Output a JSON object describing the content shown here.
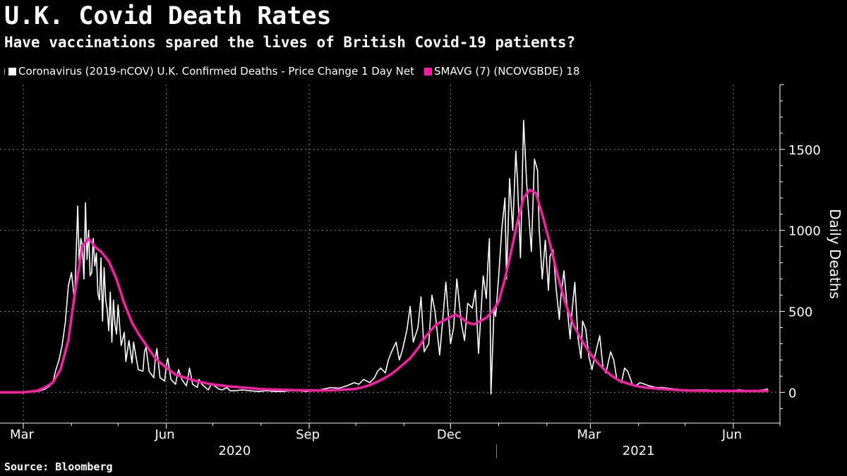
{
  "title": "U.K. Covid Death Rates",
  "subtitle": "Have vaccinations spared the lives of British Covid-19 patients?",
  "legend": {
    "series_daily": "Coronavirus (2019-nCOV) U.K. Confirmed Deaths - Price Change 1 Day Net",
    "series_avg": "SMAVG (7) (NCOVGBDE) 18"
  },
  "source": "Source: Bloomberg",
  "colors": {
    "background": "#000000",
    "daily_line": "#ffffff",
    "avg_line": "#ff1aa8",
    "grid": "#888888"
  },
  "chart_data": {
    "type": "line",
    "title": "U.K. Covid Death Rates",
    "xlabel": "",
    "ylabel": "Daily Deaths",
    "y_axis_side": "right",
    "ylim": [
      -190,
      1900
    ],
    "yticks": [
      0,
      500,
      1000,
      1500
    ],
    "x_date_range": [
      "2020-03-01",
      "2021-07-01"
    ],
    "x_tick_labels": [
      {
        "label": "Mar",
        "date": "2020-03-01"
      },
      {
        "label": "Jun",
        "date": "2020-06-01"
      },
      {
        "label": "Sep",
        "date": "2020-09-01"
      },
      {
        "label": "Dec",
        "date": "2020-12-01"
      },
      {
        "label": "Mar",
        "date": "2021-03-01"
      },
      {
        "label": "Jun",
        "date": "2021-06-01"
      }
    ],
    "x_year_labels": [
      {
        "label": "2020",
        "date": "2020-07-15"
      },
      {
        "label": "2021",
        "date": "2021-04-01"
      }
    ],
    "x_year_divider": "2021-01-01",
    "grid": true,
    "legend_position": "top-left",
    "series": [
      {
        "name": "Coronavirus (2019-nCOV) U.K. Confirmed Deaths - Price Change 1 Day Net",
        "style": "daily",
        "x": [
          "2020-02-15",
          "2020-03-01",
          "2020-03-10",
          "2020-03-15",
          "2020-03-18",
          "2020-03-20",
          "2020-03-22",
          "2020-03-24",
          "2020-03-26",
          "2020-03-28",
          "2020-03-30",
          "2020-04-01",
          "2020-04-03",
          "2020-04-05",
          "2020-04-06",
          "2020-04-07",
          "2020-04-08",
          "2020-04-09",
          "2020-04-10",
          "2020-04-11",
          "2020-04-12",
          "2020-04-13",
          "2020-04-14",
          "2020-04-15",
          "2020-04-16",
          "2020-04-17",
          "2020-04-18",
          "2020-04-19",
          "2020-04-20",
          "2020-04-21",
          "2020-04-22",
          "2020-04-23",
          "2020-04-24",
          "2020-04-25",
          "2020-04-26",
          "2020-04-27",
          "2020-04-28",
          "2020-04-29",
          "2020-04-30",
          "2020-05-01",
          "2020-05-03",
          "2020-05-04",
          "2020-05-05",
          "2020-05-06",
          "2020-05-08",
          "2020-05-10",
          "2020-05-11",
          "2020-05-12",
          "2020-05-14",
          "2020-05-17",
          "2020-05-18",
          "2020-05-19",
          "2020-05-21",
          "2020-05-24",
          "2020-05-25",
          "2020-05-26",
          "2020-05-28",
          "2020-05-31",
          "2020-06-01",
          "2020-06-02",
          "2020-06-04",
          "2020-06-07",
          "2020-06-08",
          "2020-06-09",
          "2020-06-11",
          "2020-06-14",
          "2020-06-15",
          "2020-06-16",
          "2020-06-18",
          "2020-06-21",
          "2020-06-22",
          "2020-06-23",
          "2020-06-25",
          "2020-06-28",
          "2020-06-30",
          "2020-07-02",
          "2020-07-05",
          "2020-07-07",
          "2020-07-10",
          "2020-07-12",
          "2020-07-15",
          "2020-07-20",
          "2020-07-25",
          "2020-07-30",
          "2020-08-05",
          "2020-08-10",
          "2020-08-15",
          "2020-08-20",
          "2020-08-25",
          "2020-08-30",
          "2020-09-05",
          "2020-09-10",
          "2020-09-15",
          "2020-09-20",
          "2020-09-25",
          "2020-09-30",
          "2020-10-03",
          "2020-10-06",
          "2020-10-08",
          "2020-10-10",
          "2020-10-13",
          "2020-10-15",
          "2020-10-17",
          "2020-10-20",
          "2020-10-22",
          "2020-10-24",
          "2020-10-27",
          "2020-10-29",
          "2020-10-31",
          "2020-11-03",
          "2020-11-05",
          "2020-11-07",
          "2020-11-10",
          "2020-11-12",
          "2020-11-14",
          "2020-11-17",
          "2020-11-19",
          "2020-11-21",
          "2020-11-24",
          "2020-11-26",
          "2020-11-28",
          "2020-12-01",
          "2020-12-03",
          "2020-12-05",
          "2020-12-08",
          "2020-12-10",
          "2020-12-12",
          "2020-12-15",
          "2020-12-17",
          "2020-12-19",
          "2020-12-22",
          "2020-12-24",
          "2020-12-25",
          "2020-12-26",
          "2020-12-27",
          "2020-12-29",
          "2020-12-30",
          "2021-01-01",
          "2021-01-03",
          "2021-01-05",
          "2021-01-06",
          "2021-01-08",
          "2021-01-10",
          "2021-01-12",
          "2021-01-13",
          "2021-01-15",
          "2021-01-17",
          "2021-01-19",
          "2021-01-20",
          "2021-01-22",
          "2021-01-24",
          "2021-01-26",
          "2021-01-27",
          "2021-01-29",
          "2021-01-31",
          "2021-02-02",
          "2021-02-03",
          "2021-02-05",
          "2021-02-07",
          "2021-02-09",
          "2021-02-10",
          "2021-02-12",
          "2021-02-14",
          "2021-02-16",
          "2021-02-17",
          "2021-02-19",
          "2021-02-21",
          "2021-02-23",
          "2021-02-24",
          "2021-02-26",
          "2021-02-28",
          "2021-03-02",
          "2021-03-04",
          "2021-03-07",
          "2021-03-09",
          "2021-03-11",
          "2021-03-14",
          "2021-03-16",
          "2021-03-18",
          "2021-03-21",
          "2021-03-23",
          "2021-03-25",
          "2021-03-28",
          "2021-03-30",
          "2021-04-02",
          "2021-04-05",
          "2021-04-08",
          "2021-04-12",
          "2021-04-16",
          "2021-04-20",
          "2021-04-25",
          "2021-04-30",
          "2021-05-05",
          "2021-05-10",
          "2021-05-15",
          "2021-05-20",
          "2021-05-25",
          "2021-05-30",
          "2021-06-05",
          "2021-06-10",
          "2021-06-15",
          "2021-06-20",
          "2021-06-23"
        ],
        "values": [
          0,
          0,
          5,
          20,
          40,
          60,
          140,
          200,
          290,
          430,
          660,
          740,
          560,
          1150,
          780,
          950,
          910,
          700,
          1170,
          820,
          1000,
          720,
          740,
          950,
          780,
          860,
          610,
          570,
          830,
          440,
          770,
          570,
          510,
          380,
          620,
          310,
          570,
          420,
          360,
          540,
          290,
          330,
          370,
          190,
          320,
          180,
          310,
          250,
          140,
          130,
          250,
          280,
          130,
          90,
          210,
          270,
          90,
          70,
          160,
          210,
          80,
          50,
          100,
          140,
          80,
          40,
          90,
          150,
          50,
          30,
          80,
          60,
          40,
          15,
          50,
          40,
          20,
          15,
          30,
          10,
          10,
          15,
          10,
          5,
          10,
          5,
          5,
          10,
          10,
          5,
          10,
          20,
          30,
          25,
          40,
          60,
          50,
          80,
          70,
          60,
          90,
          130,
          150,
          120,
          200,
          250,
          310,
          200,
          260,
          390,
          530,
          310,
          400,
          590,
          250,
          300,
          600,
          500,
          230,
          450,
          680,
          300,
          400,
          700,
          420,
          320,
          550,
          520,
          630,
          240,
          720,
          580,
          790,
          950,
          -10,
          520,
          470,
          720,
          1010,
          1200,
          700,
          1320,
          1000,
          1490,
          1320,
          830,
          1680,
          1290,
          1140,
          870,
          1440,
          1370,
          1020,
          700,
          940,
          630,
          840,
          880,
          640,
          450,
          590,
          750,
          530,
          330,
          480,
          680,
          340,
          210,
          440,
          390,
          220,
          140,
          230,
          350,
          160,
          120,
          250,
          200,
          80,
          60,
          150,
          130,
          50,
          40,
          60,
          50,
          40,
          30,
          30,
          25,
          20,
          15,
          15,
          15,
          15,
          10,
          10,
          10,
          15,
          10,
          10,
          15,
          20
        ]
      },
      {
        "name": "SMAVG (7) (NCOVGBDE) 18",
        "style": "average",
        "x": [
          "2020-02-15",
          "2020-03-01",
          "2020-03-10",
          "2020-03-15",
          "2020-03-20",
          "2020-03-25",
          "2020-03-30",
          "2020-04-03",
          "2020-04-08",
          "2020-04-12",
          "2020-04-16",
          "2020-04-20",
          "2020-04-25",
          "2020-04-30",
          "2020-05-05",
          "2020-05-10",
          "2020-05-15",
          "2020-05-20",
          "2020-05-25",
          "2020-05-31",
          "2020-06-07",
          "2020-06-15",
          "2020-06-22",
          "2020-06-30",
          "2020-07-10",
          "2020-07-20",
          "2020-08-01",
          "2020-08-15",
          "2020-09-01",
          "2020-09-10",
          "2020-09-20",
          "2020-09-30",
          "2020-10-05",
          "2020-10-10",
          "2020-10-15",
          "2020-10-20",
          "2020-10-25",
          "2020-10-30",
          "2020-11-05",
          "2020-11-10",
          "2020-11-14",
          "2020-11-18",
          "2020-11-22",
          "2020-11-26",
          "2020-11-30",
          "2020-12-04",
          "2020-12-08",
          "2020-12-12",
          "2020-12-16",
          "2020-12-20",
          "2020-12-24",
          "2020-12-28",
          "2021-01-01",
          "2021-01-05",
          "2021-01-09",
          "2021-01-13",
          "2021-01-17",
          "2021-01-21",
          "2021-01-25",
          "2021-01-29",
          "2021-02-03",
          "2021-02-08",
          "2021-02-13",
          "2021-02-18",
          "2021-02-23",
          "2021-02-28",
          "2021-03-05",
          "2021-03-10",
          "2021-03-15",
          "2021-03-20",
          "2021-03-25",
          "2021-03-30",
          "2021-04-05",
          "2021-04-10",
          "2021-04-20",
          "2021-05-01",
          "2021-05-15",
          "2021-05-25",
          "2021-06-05",
          "2021-06-15",
          "2021-06-23"
        ],
        "values": [
          0,
          0,
          10,
          30,
          60,
          140,
          320,
          600,
          900,
          950,
          900,
          870,
          810,
          700,
          550,
          430,
          350,
          280,
          210,
          160,
          110,
          85,
          65,
          50,
          38,
          30,
          20,
          15,
          12,
          12,
          15,
          20,
          30,
          45,
          65,
          90,
          120,
          160,
          210,
          270,
          330,
          380,
          420,
          440,
          460,
          480,
          460,
          430,
          420,
          440,
          460,
          500,
          560,
          700,
          870,
          1050,
          1200,
          1250,
          1230,
          1100,
          920,
          720,
          550,
          420,
          330,
          250,
          190,
          140,
          100,
          70,
          55,
          40,
          30,
          25,
          18,
          12,
          10,
          9,
          8,
          8,
          10
        ]
      }
    ]
  }
}
